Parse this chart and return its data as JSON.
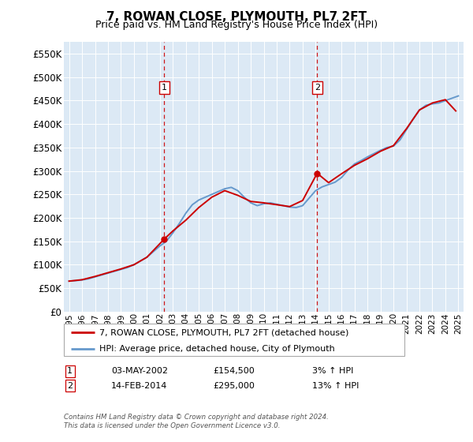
{
  "title": "7, ROWAN CLOSE, PLYMOUTH, PL7 2FT",
  "subtitle": "Price paid vs. HM Land Registry's House Price Index (HPI)",
  "legend_line1": "7, ROWAN CLOSE, PLYMOUTH, PL7 2FT (detached house)",
  "legend_line2": "HPI: Average price, detached house, City of Plymouth",
  "transaction1_date": "03-MAY-2002",
  "transaction1_price": "£154,500",
  "transaction1_hpi": "3% ↑ HPI",
  "transaction1_year": 2002.33,
  "transaction1_value": 154500,
  "transaction2_date": "14-FEB-2014",
  "transaction2_price": "£295,000",
  "transaction2_hpi": "13% ↑ HPI",
  "transaction2_year": 2014.12,
  "transaction2_value": 295000,
  "footer_line1": "Contains HM Land Registry data © Crown copyright and database right 2024.",
  "footer_line2": "This data is licensed under the Open Government Licence v3.0.",
  "ylim": [
    0,
    575000
  ],
  "yticks": [
    0,
    50000,
    100000,
    150000,
    200000,
    250000,
    300000,
    350000,
    400000,
    450000,
    500000,
    550000
  ],
  "plot_bg_color": "#dce9f5",
  "outer_bg_color": "#f0f0f0",
  "line_color_property": "#cc0000",
  "line_color_hpi": "#6699cc",
  "dashed_line_color": "#cc0000",
  "years_hpi": [
    1995.0,
    1995.5,
    1996.0,
    1996.5,
    1997.0,
    1997.5,
    1998.0,
    1998.5,
    1999.0,
    1999.5,
    2000.0,
    2000.5,
    2001.0,
    2001.5,
    2002.0,
    2002.5,
    2003.0,
    2003.5,
    2004.0,
    2004.5,
    2005.0,
    2005.5,
    2006.0,
    2006.5,
    2007.0,
    2007.5,
    2008.0,
    2008.5,
    2009.0,
    2009.5,
    2010.0,
    2010.5,
    2011.0,
    2011.5,
    2012.0,
    2012.5,
    2013.0,
    2013.5,
    2014.0,
    2014.5,
    2015.0,
    2015.5,
    2016.0,
    2016.5,
    2017.0,
    2017.5,
    2018.0,
    2018.5,
    2019.0,
    2019.5,
    2020.0,
    2020.5,
    2021.0,
    2021.5,
    2022.0,
    2022.5,
    2023.0,
    2023.5,
    2024.0,
    2024.5,
    2025.0
  ],
  "hpi_values": [
    65000,
    66000,
    67500,
    70000,
    74000,
    78000,
    82000,
    86000,
    90000,
    94000,
    100000,
    108000,
    116000,
    128000,
    140000,
    150000,
    168000,
    188000,
    210000,
    228000,
    238000,
    244000,
    250000,
    256000,
    262000,
    265000,
    258000,
    244000,
    232000,
    226000,
    230000,
    232000,
    229000,
    226000,
    223000,
    222000,
    226000,
    242000,
    258000,
    266000,
    271000,
    276000,
    286000,
    302000,
    315000,
    322000,
    330000,
    337000,
    344000,
    350000,
    353000,
    366000,
    388000,
    410000,
    430000,
    440000,
    443000,
    445000,
    450000,
    455000,
    460000
  ],
  "years_prop": [
    1995.0,
    1996.0,
    1997.0,
    1998.0,
    1999.0,
    2000.0,
    2001.0,
    2002.33,
    2003.0,
    2004.0,
    2005.0,
    2006.0,
    2007.0,
    2008.0,
    2009.0,
    2010.0,
    2011.0,
    2012.0,
    2013.0,
    2014.12,
    2015.0,
    2016.0,
    2017.0,
    2018.0,
    2019.0,
    2020.0,
    2021.0,
    2022.0,
    2023.0,
    2024.0,
    2024.8
  ],
  "prop_values": [
    65000,
    68000,
    75000,
    83000,
    91000,
    100000,
    116000,
    154500,
    172000,
    195000,
    222000,
    244000,
    258000,
    248000,
    235000,
    232000,
    228000,
    224000,
    237000,
    295000,
    275000,
    294000,
    312000,
    326000,
    342000,
    354000,
    390000,
    430000,
    445000,
    452000,
    428000
  ]
}
